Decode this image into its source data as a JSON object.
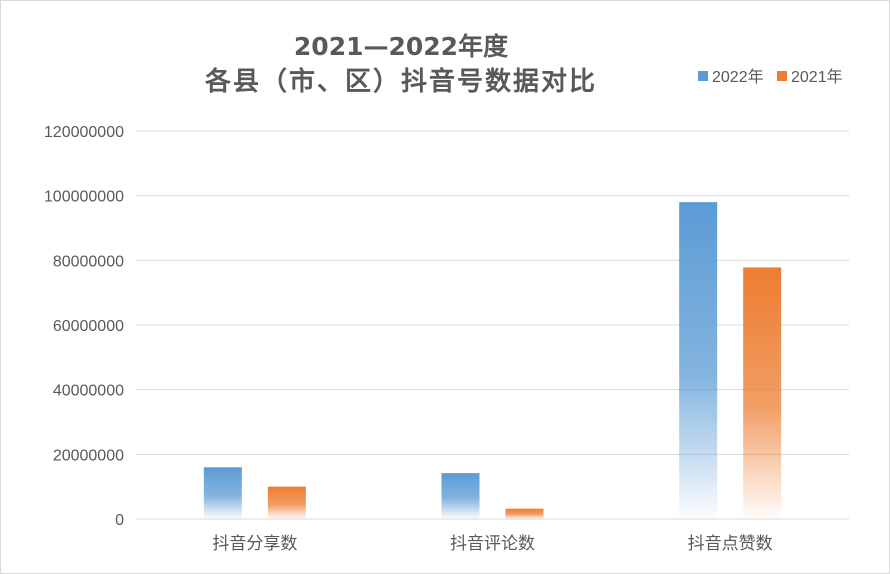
{
  "chart_data": {
    "type": "bar",
    "title_line1": "2021—2022年度",
    "title_line2": "各县（市、区）抖音号数据对比",
    "categories": [
      "抖音分享数",
      "抖音评论数",
      "抖音点赞数"
    ],
    "series": [
      {
        "name": "2022年",
        "values": [
          16000000,
          14200000,
          98000000
        ],
        "color": "#5B9BD5"
      },
      {
        "name": "2021年",
        "values": [
          10000000,
          3200000,
          77800000
        ],
        "color": "#ED7D31"
      }
    ],
    "ylim": [
      0,
      120000000
    ],
    "yticks": [
      "0",
      "20000000",
      "40000000",
      "60000000",
      "80000000",
      "100000000",
      "120000000"
    ],
    "grid": true,
    "legend_position": "top-right"
  }
}
